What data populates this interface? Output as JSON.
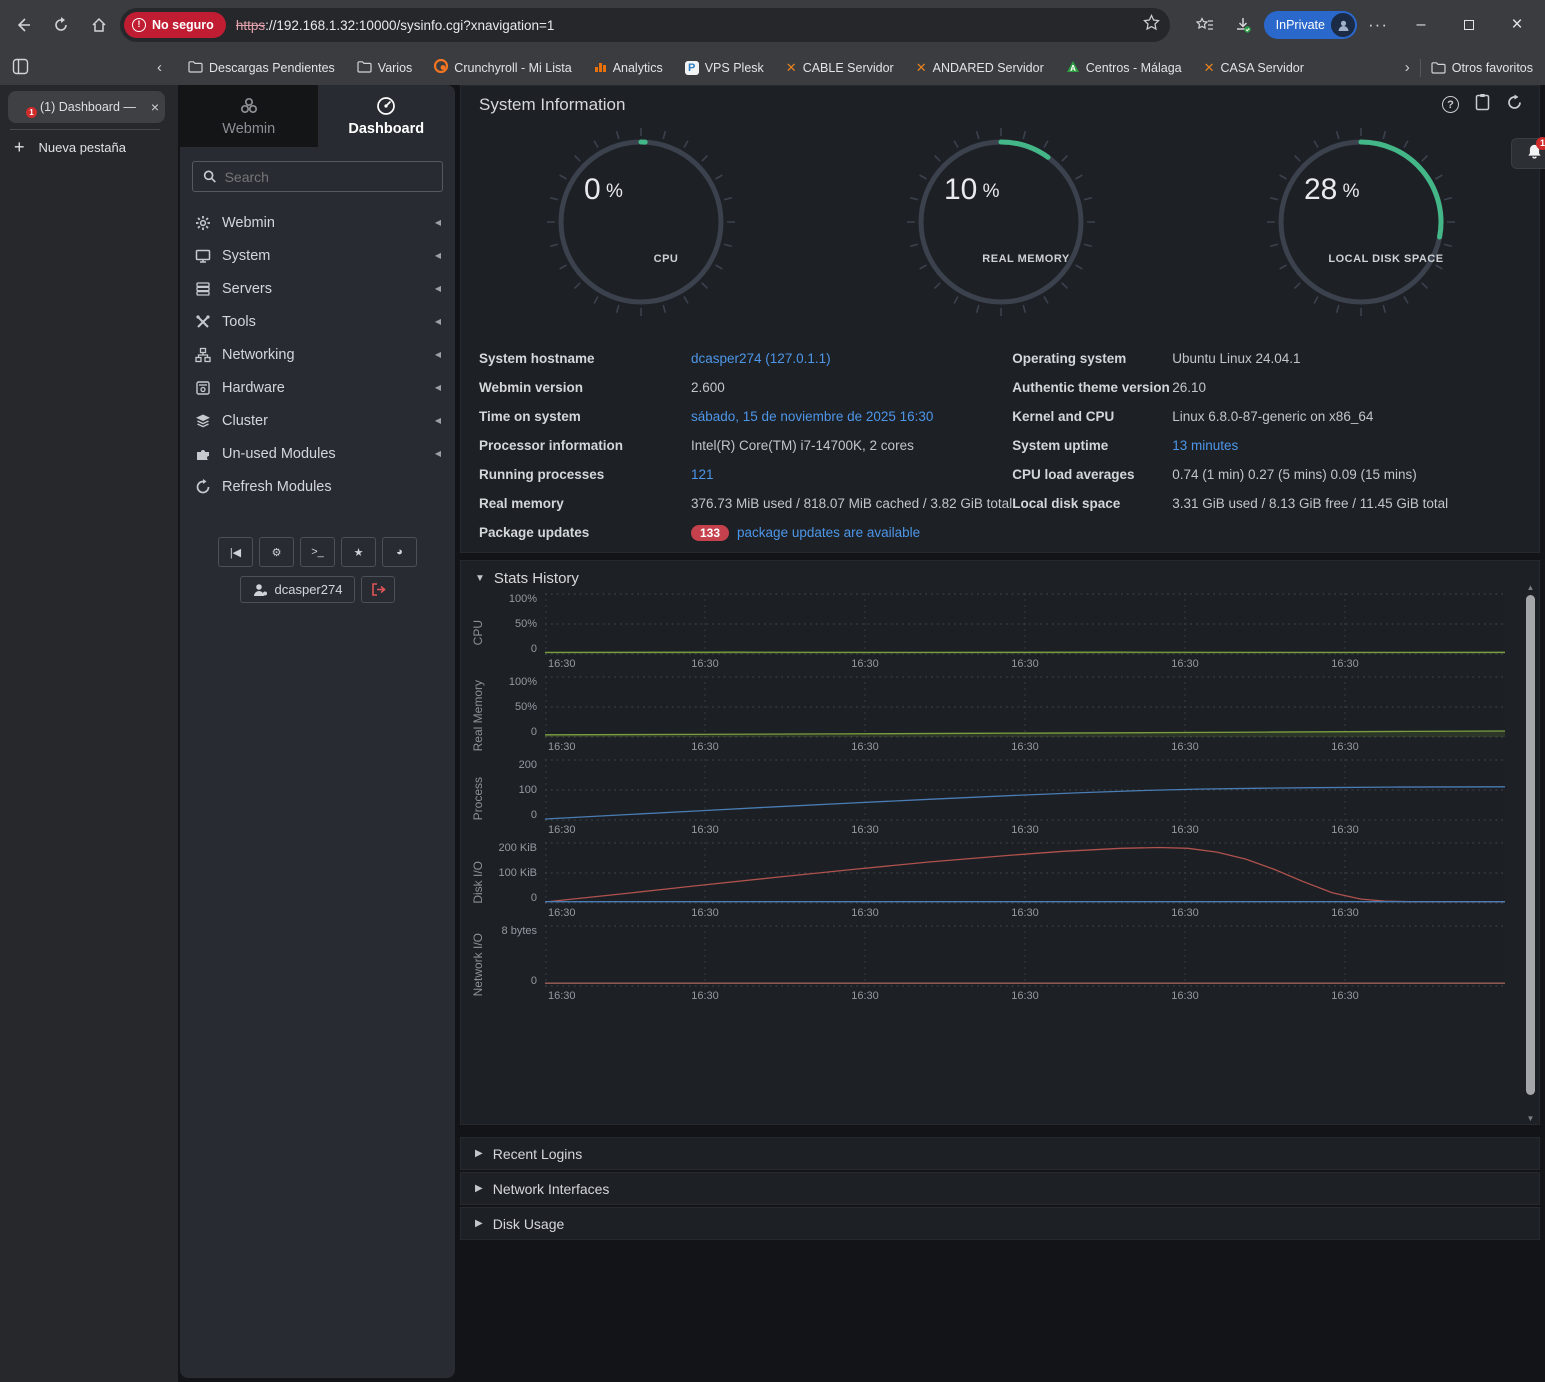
{
  "browser": {
    "security_badge": "No seguro",
    "url_scheme": "https",
    "url_rest": "://192.168.1.32:10000/sysinfo.cgi?xnavigation=1",
    "inprivate_label": "InPrivate",
    "tab_title": "(1) Dashboard —",
    "tab_badge": "1",
    "new_tab_label": "Nueva pestaña",
    "others_favorites": "Otros favoritos",
    "bookmarks": [
      {
        "label": "Descargas Pendientes",
        "icon": "folder-icon"
      },
      {
        "label": "Varios",
        "icon": "folder-icon"
      },
      {
        "label": "Crunchyroll - Mi Lista",
        "icon": "crunchyroll-icon",
        "color": "#f47521"
      },
      {
        "label": "Analytics",
        "icon": "analytics-icon",
        "color": "#e8710a"
      },
      {
        "label": "VPS Plesk",
        "icon": "plesk-icon",
        "color": "#2f7dc0"
      },
      {
        "label": "CABLE Servidor",
        "icon": "webmin-x-icon",
        "color": "#e8821e"
      },
      {
        "label": "ANDARED Servidor",
        "icon": "webmin-x-icon",
        "color": "#e8821e"
      },
      {
        "label": "Centros - Málaga",
        "icon": "triangle-a-icon",
        "color": "#2f9e41"
      },
      {
        "label": "CASA Servidor",
        "icon": "webmin-x-icon",
        "color": "#e8821e"
      }
    ]
  },
  "sidebar": {
    "tabs": [
      {
        "label": "Webmin"
      },
      {
        "label": "Dashboard"
      }
    ],
    "search_placeholder": "Search",
    "items": [
      {
        "label": "Webmin",
        "icon": "gear-icon",
        "collapsible": true
      },
      {
        "label": "System",
        "icon": "monitor-icon",
        "collapsible": true
      },
      {
        "label": "Servers",
        "icon": "server-stack-icon",
        "collapsible": true
      },
      {
        "label": "Tools",
        "icon": "tools-icon",
        "collapsible": true
      },
      {
        "label": "Networking",
        "icon": "network-icon",
        "collapsible": true
      },
      {
        "label": "Hardware",
        "icon": "hardware-icon",
        "collapsible": true
      },
      {
        "label": "Cluster",
        "icon": "layers-icon",
        "collapsible": true
      },
      {
        "label": "Un-used Modules",
        "icon": "puzzle-icon",
        "collapsible": true
      },
      {
        "label": "Refresh Modules",
        "icon": "refresh-icon",
        "collapsible": false
      }
    ],
    "footer_buttons": [
      "collapse-sidebar-icon",
      "config-icon",
      "terminal-icon",
      "star-icon",
      "palette-icon"
    ],
    "user": "dcasper274"
  },
  "main": {
    "title": "System Information",
    "gauges": [
      {
        "value": "0",
        "unit": "%",
        "label": "CPU",
        "percent": 0
      },
      {
        "value": "10",
        "unit": "%",
        "label": "REAL MEMORY",
        "percent": 10
      },
      {
        "value": "28",
        "unit": "%",
        "label": "LOCAL DISK SPACE",
        "percent": 28
      }
    ],
    "info_left": [
      {
        "label": "System hostname",
        "value": "dcasper274 (127.0.1.1)",
        "link": true
      },
      {
        "label": "Webmin version",
        "value": "2.600"
      },
      {
        "label": "Time on system",
        "value": "sábado, 15 de noviembre de 2025 16:30",
        "link": true
      },
      {
        "label": "Processor information",
        "value": "Intel(R) Core(TM) i7-14700K, 2 cores"
      },
      {
        "label": "Running processes",
        "value": "121",
        "link": true
      },
      {
        "label": "Real memory",
        "value": "376.73 MiB used / 818.07 MiB cached / 3.82 GiB total"
      },
      {
        "label": "Package updates",
        "value": "package updates are available",
        "link": true,
        "badge": "133"
      }
    ],
    "info_right": [
      {
        "label": "Operating system",
        "value": "Ubuntu Linux 24.04.1"
      },
      {
        "label": "Authentic theme version",
        "value": "26.10"
      },
      {
        "label": "Kernel and CPU",
        "value": "Linux 6.8.0-87-generic on x86_64"
      },
      {
        "label": "System uptime",
        "value": "13 minutes",
        "link": true
      },
      {
        "label": "CPU load averages",
        "value": "0.74 (1 min) 0.27 (5 mins) 0.09 (15 mins)"
      },
      {
        "label": "Local disk space",
        "value": "3.31 GiB used / 8.13 GiB free / 11.45 GiB total"
      }
    ],
    "sections": {
      "stats": "Stats History",
      "recent_logins": "Recent Logins",
      "network_interfaces": "Network Interfaces",
      "disk_usage": "Disk Usage"
    }
  },
  "chart_data": [
    {
      "type": "area",
      "title": "CPU",
      "ylabel": "CPU",
      "yticks": [
        "100%",
        "50%",
        "0"
      ],
      "ylim": [
        0,
        100
      ],
      "grid": true,
      "x_labels": [
        "16:30",
        "16:30",
        "16:30",
        "16:30",
        "16:30",
        "16:30"
      ],
      "series": [
        {
          "name": "cpu-usage",
          "color": "#7a9e3f",
          "fill": true,
          "points": [
            [
              0,
              1
            ],
            [
              0.2,
              1.3
            ],
            [
              0.4,
              1
            ],
            [
              0.6,
              1.4
            ],
            [
              0.8,
              1
            ],
            [
              1,
              1.2
            ]
          ]
        }
      ]
    },
    {
      "type": "area",
      "title": "Real Memory",
      "ylabel": "Real Memory",
      "yticks": [
        "100%",
        "50%",
        "0"
      ],
      "ylim": [
        0,
        100
      ],
      "grid": true,
      "x_labels": [
        "16:30",
        "16:30",
        "16:30",
        "16:30",
        "16:30",
        "16:30"
      ],
      "series": [
        {
          "name": "memory-usage",
          "color": "#7a9e3f",
          "fill": true,
          "points": [
            [
              0,
              2
            ],
            [
              0.15,
              2.8
            ],
            [
              0.3,
              3.6
            ],
            [
              0.45,
              4.6
            ],
            [
              0.6,
              5.6
            ],
            [
              0.75,
              6.8
            ],
            [
              0.9,
              8
            ],
            [
              1,
              8.6
            ]
          ]
        }
      ]
    },
    {
      "type": "line",
      "title": "Process",
      "ylabel": "Process",
      "yticks": [
        "200",
        "100",
        "0"
      ],
      "ylim": [
        0,
        200
      ],
      "grid": true,
      "x_labels": [
        "16:30",
        "16:30",
        "16:30",
        "16:30",
        "16:30",
        "16:30"
      ],
      "series": [
        {
          "name": "process-count",
          "color": "#4a7db5",
          "fill": false,
          "points": [
            [
              0,
              0
            ],
            [
              0.08,
              14
            ],
            [
              0.16,
              28
            ],
            [
              0.24,
              42
            ],
            [
              0.32,
              55
            ],
            [
              0.4,
              68
            ],
            [
              0.48,
              80
            ],
            [
              0.56,
              91
            ],
            [
              0.62,
              98
            ],
            [
              0.68,
              103
            ],
            [
              0.74,
              106
            ],
            [
              0.8,
              108
            ],
            [
              0.88,
              110
            ],
            [
              1,
              111
            ]
          ]
        }
      ]
    },
    {
      "type": "line",
      "title": "Disk I/O",
      "ylabel": "Disk I/O",
      "yticks": [
        "200 KiB",
        "100 KiB",
        "0"
      ],
      "ylim": [
        0,
        200
      ],
      "grid": true,
      "x_labels": [
        "16:30",
        "16:30",
        "16:30",
        "16:30",
        "16:30",
        "16:30"
      ],
      "series": [
        {
          "name": "disk-read",
          "color": "#b0524e",
          "fill": false,
          "points": [
            [
              0,
              0
            ],
            [
              0.08,
              28
            ],
            [
              0.16,
              57
            ],
            [
              0.24,
              85
            ],
            [
              0.32,
              112
            ],
            [
              0.4,
              138
            ],
            [
              0.48,
              160
            ],
            [
              0.54,
              175
            ],
            [
              0.6,
              185
            ],
            [
              0.64,
              188
            ],
            [
              0.67,
              185
            ],
            [
              0.7,
              172
            ],
            [
              0.73,
              148
            ],
            [
              0.76,
              112
            ],
            [
              0.79,
              70
            ],
            [
              0.82,
              32
            ],
            [
              0.85,
              10
            ],
            [
              0.875,
              3
            ],
            [
              0.9,
              1
            ],
            [
              1,
              1
            ]
          ]
        },
        {
          "name": "disk-write",
          "color": "#4a7db5",
          "fill": false,
          "points": [
            [
              0,
              1
            ],
            [
              1,
              1
            ]
          ]
        }
      ]
    },
    {
      "type": "line",
      "title": "Network I/O",
      "ylabel": "Network I/O",
      "yticks": [
        "8 bytes",
        "0"
      ],
      "ylim": [
        0,
        8
      ],
      "grid": true,
      "x_labels": [
        "16:30",
        "16:30",
        "16:30",
        "16:30",
        "16:30",
        "16:30"
      ],
      "series": [
        {
          "name": "network-traffic",
          "color": "#9e6258",
          "fill": false,
          "points": [
            [
              0,
              0.25
            ],
            [
              1,
              0.25
            ]
          ]
        }
      ]
    }
  ]
}
